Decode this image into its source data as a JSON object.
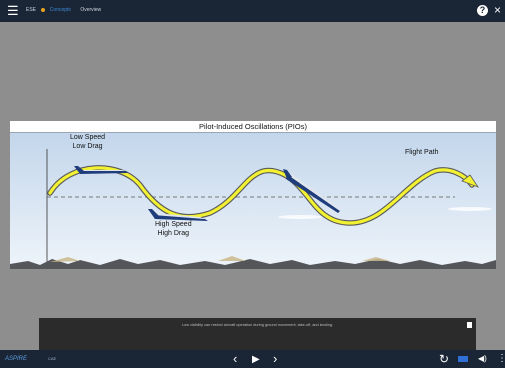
{
  "topbar": {
    "menu_icon": "hamburger-icon",
    "breadcrumb": [
      "ESE",
      "Concepts",
      "Overview"
    ],
    "help_icon": "help-circle-icon",
    "help_glyph": "?",
    "close_icon": "close-icon",
    "close_glyph": "×",
    "menu_glyph": "☰"
  },
  "slide": {
    "title": "Pilot-Induced Oscillations (PIOs)",
    "labels": {
      "low_speed_line1": "Low Speed",
      "low_speed_line2": "Low Drag",
      "high_speed_line1": "High Speed",
      "high_speed_line2": "High Drag",
      "flight_path": "Flight Path"
    },
    "colors": {
      "path_fill": "#f2f233",
      "path_stroke": "#5a5a5a",
      "sky_top": "#c7d8ec",
      "sky_bottom": "#eef4fa"
    }
  },
  "caption": {
    "text": "Low visibility can restrict aircraft operation during ground movement, take-off, and landing.",
    "doc_icon": "document-icon"
  },
  "bottombar": {
    "logo_text": "ASPIRE",
    "logo2_text": "CAE",
    "prev_glyph": "‹",
    "play_glyph": "▶",
    "next_glyph": "›",
    "replay_glyph": "↻",
    "volume_glyph": "◀)",
    "more_glyph": "⋮"
  }
}
